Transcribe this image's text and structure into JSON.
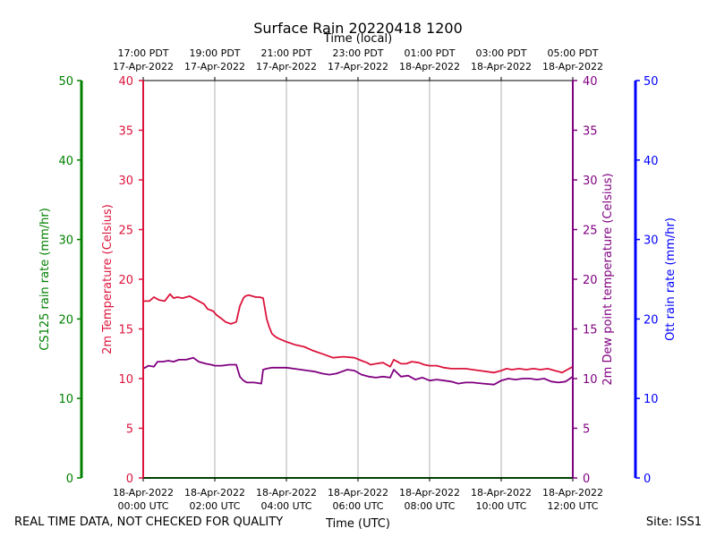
{
  "chart_data": {
    "type": "line",
    "title": "Surface Rain 20220418 1200",
    "top_axis_label": "Time (local)",
    "xlabel": "Time (UTC)",
    "x_unit": "hours since 18-Apr-2022 00:00 UTC",
    "xlim": [
      0,
      12
    ],
    "x_ticks": [
      0,
      2,
      4,
      6,
      8,
      10,
      12
    ],
    "x_tick_labels_utc": [
      [
        "18-Apr-2022",
        "00:00 UTC"
      ],
      [
        "18-Apr-2022",
        "02:00 UTC"
      ],
      [
        "18-Apr-2022",
        "04:00 UTC"
      ],
      [
        "18-Apr-2022",
        "06:00 UTC"
      ],
      [
        "18-Apr-2022",
        "08:00 UTC"
      ],
      [
        "18-Apr-2022",
        "10:00 UTC"
      ],
      [
        "18-Apr-2022",
        "12:00 UTC"
      ]
    ],
    "x_tick_labels_local": [
      [
        "17:00 PDT",
        "17-Apr-2022"
      ],
      [
        "19:00 PDT",
        "17-Apr-2022"
      ],
      [
        "21:00 PDT",
        "17-Apr-2022"
      ],
      [
        "23:00 PDT",
        "17-Apr-2022"
      ],
      [
        "01:00 PDT",
        "18-Apr-2022"
      ],
      [
        "03:00 PDT",
        "18-Apr-2022"
      ],
      [
        "05:00 PDT",
        "18-Apr-2022"
      ]
    ],
    "grid": "vertical",
    "axes": {
      "cs125": {
        "label": "CS125 rain rate (mm/hr)",
        "ylim": [
          0,
          50
        ],
        "ticks": [
          0,
          10,
          20,
          30,
          40,
          50
        ],
        "color": "#008000"
      },
      "temp": {
        "label": "2m Temperature (Celsius)",
        "ylim": [
          0,
          40
        ],
        "ticks": [
          0,
          5,
          10,
          15,
          20,
          25,
          30,
          35,
          40
        ],
        "color": "#dc143c"
      },
      "dew": {
        "label": "2m Dew point temperature (Celsius)",
        "ylim": [
          0,
          40
        ],
        "ticks": [
          0,
          5,
          10,
          15,
          20,
          25,
          30,
          35,
          40
        ],
        "color": "#800080"
      },
      "ott": {
        "label": "Ott rain rate (mm/hr)",
        "ylim": [
          0,
          50
        ],
        "ticks": [
          0,
          10,
          20,
          30,
          40,
          50
        ],
        "color": "#0000ff"
      }
    },
    "series": [
      {
        "name": "2m Temperature",
        "axis": "temp",
        "color": "#dc143c",
        "x": [
          0,
          0.17,
          0.3,
          0.45,
          0.6,
          0.75,
          0.85,
          0.95,
          1.1,
          1.3,
          1.5,
          1.7,
          1.8,
          1.95,
          2.05,
          2.2,
          2.3,
          2.45,
          2.6,
          2.7,
          2.8,
          2.85,
          2.95,
          3.05,
          3.15,
          3.25,
          3.35,
          3.45,
          3.52,
          3.6,
          3.7,
          3.8,
          4.0,
          4.25,
          4.5,
          4.75,
          5.0,
          5.3,
          5.6,
          5.9,
          6.1,
          6.25,
          6.35,
          6.5,
          6.7,
          6.8,
          6.9,
          7.0,
          7.1,
          7.2,
          7.35,
          7.5,
          7.7,
          7.85,
          8.0,
          8.2,
          8.4,
          8.6,
          8.8,
          9.0,
          9.2,
          9.4,
          9.6,
          9.8,
          10.0,
          10.15,
          10.3,
          10.5,
          10.7,
          10.9,
          11.1,
          11.3,
          11.5,
          11.7,
          11.85,
          12.0
        ],
        "y": [
          17.8,
          17.8,
          18.2,
          17.9,
          17.8,
          18.5,
          18.1,
          18.2,
          18.1,
          18.3,
          17.9,
          17.5,
          17.0,
          16.8,
          16.4,
          16.0,
          15.7,
          15.5,
          15.7,
          17.3,
          18.1,
          18.3,
          18.4,
          18.3,
          18.2,
          18.2,
          18.1,
          16.0,
          15.2,
          14.5,
          14.2,
          14.0,
          13.7,
          13.4,
          13.2,
          12.8,
          12.5,
          12.1,
          12.2,
          12.1,
          11.8,
          11.6,
          11.4,
          11.5,
          11.6,
          11.4,
          11.2,
          11.9,
          11.7,
          11.5,
          11.5,
          11.7,
          11.6,
          11.4,
          11.3,
          11.3,
          11.1,
          11.0,
          11.0,
          11.0,
          10.9,
          10.8,
          10.7,
          10.6,
          10.8,
          11.0,
          10.9,
          11.0,
          10.9,
          11.0,
          10.9,
          11.0,
          10.8,
          10.6,
          10.9,
          11.2
        ]
      },
      {
        "name": "2m Dew point temperature",
        "axis": "dew",
        "color": "#800080",
        "x": [
          0,
          0.15,
          0.3,
          0.4,
          0.55,
          0.7,
          0.85,
          1.0,
          1.2,
          1.4,
          1.55,
          1.75,
          1.9,
          2.0,
          2.2,
          2.4,
          2.6,
          2.7,
          2.8,
          2.9,
          3.1,
          3.3,
          3.35,
          3.45,
          3.6,
          3.8,
          4.0,
          4.2,
          4.4,
          4.6,
          4.8,
          5.0,
          5.2,
          5.4,
          5.7,
          5.9,
          6.1,
          6.3,
          6.5,
          6.7,
          6.9,
          7.0,
          7.2,
          7.4,
          7.6,
          7.8,
          8.0,
          8.2,
          8.4,
          8.6,
          8.8,
          9.0,
          9.2,
          9.5,
          9.8,
          10.0,
          10.2,
          10.4,
          10.6,
          10.8,
          11.0,
          11.2,
          11.4,
          11.6,
          11.8,
          12.0
        ],
        "y": [
          11.0,
          11.3,
          11.2,
          11.7,
          11.7,
          11.8,
          11.7,
          11.9,
          11.9,
          12.1,
          11.7,
          11.5,
          11.4,
          11.3,
          11.3,
          11.4,
          11.4,
          10.2,
          9.8,
          9.6,
          9.6,
          9.5,
          10.9,
          11.0,
          11.1,
          11.1,
          11.1,
          11.0,
          10.9,
          10.8,
          10.7,
          10.5,
          10.4,
          10.5,
          10.9,
          10.8,
          10.4,
          10.2,
          10.1,
          10.2,
          10.1,
          10.9,
          10.2,
          10.3,
          9.9,
          10.1,
          9.8,
          9.9,
          9.8,
          9.7,
          9.5,
          9.6,
          9.6,
          9.5,
          9.4,
          9.8,
          10.0,
          9.9,
          10.0,
          10.0,
          9.9,
          10.0,
          9.7,
          9.6,
          9.7,
          10.2
        ]
      },
      {
        "name": "CS125 rain rate",
        "axis": "cs125",
        "color": "#008000",
        "x": [
          0,
          12
        ],
        "y": [
          0,
          0
        ]
      }
    ]
  },
  "footer": {
    "left": "REAL TIME DATA, NOT CHECKED FOR QUALITY",
    "right": "Site: ISS1"
  }
}
